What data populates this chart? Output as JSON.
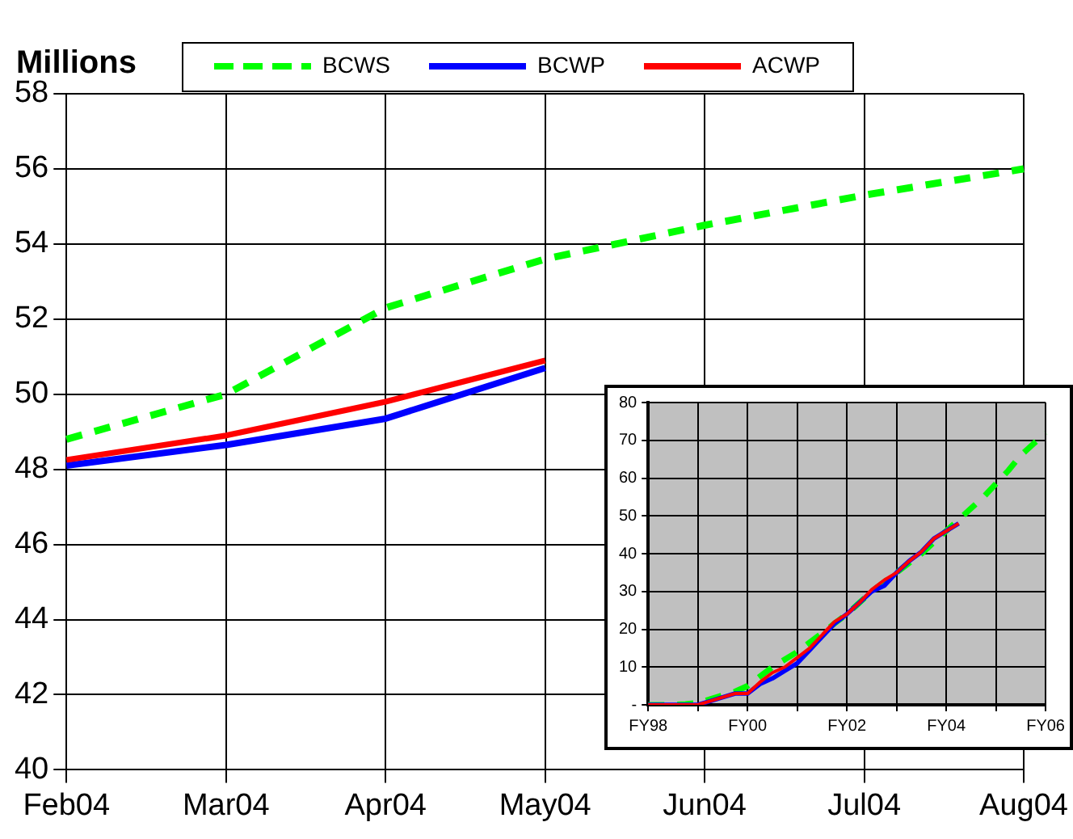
{
  "chart_data": [
    {
      "type": "line",
      "ylabel": "Millions",
      "categories": [
        "Feb04",
        "Mar04",
        "Apr04",
        "May04",
        "Jun04",
        "Jul04",
        "Aug04"
      ],
      "series": [
        {
          "name": "BCWS",
          "color": "#00ff00",
          "line_style": "dashed",
          "values": [
            48.8,
            50.0,
            52.3,
            53.6,
            54.5,
            55.3,
            56.0
          ]
        },
        {
          "name": "BCWP",
          "color": "#0000ff",
          "values": [
            48.1,
            48.65,
            49.35,
            50.7,
            null,
            null,
            null
          ]
        },
        {
          "name": "ACWP",
          "color": "#ff0000",
          "values": [
            48.25,
            48.9,
            49.8,
            50.9,
            null,
            null,
            null
          ]
        }
      ],
      "ylim": [
        40,
        58
      ],
      "yticks": [
        40,
        42,
        44,
        46,
        48,
        50,
        52,
        54,
        56,
        58
      ],
      "grid": true,
      "legend": "top",
      "marker": "none"
    },
    {
      "type": "line",
      "categories": [
        "FY98",
        null,
        null,
        null,
        null,
        null,
        null,
        null,
        "FY00",
        null,
        null,
        null,
        null,
        null,
        null,
        null,
        "FY02",
        null,
        null,
        null,
        null,
        null,
        null,
        null,
        "FY04",
        null,
        null,
        null,
        null,
        null,
        null,
        null,
        "FY06"
      ],
      "series": [
        {
          "color": "#00ff00",
          "line_style": "dashed",
          "values": [
            0,
            0,
            0,
            0.2,
            0.5,
            1.5,
            2.5,
            3.5,
            5,
            7.5,
            10,
            12,
            14,
            16.5,
            19,
            21.5,
            24,
            27,
            30,
            32.5,
            35,
            37.5,
            40,
            43,
            46,
            49,
            52,
            55,
            58.5,
            62,
            66,
            69,
            72
          ]
        },
        {
          "color": "#0000ff",
          "values": [
            0,
            0,
            0,
            0,
            0,
            1,
            2,
            3,
            3,
            5.5,
            7,
            9,
            11,
            14.5,
            18,
            21.5,
            24,
            27,
            30,
            31.5,
            35,
            38,
            40.5,
            44,
            46,
            48,
            null,
            null,
            null,
            null,
            null,
            null,
            null
          ]
        },
        {
          "color": "#ff0000",
          "values": [
            0,
            0,
            0,
            0,
            0,
            1,
            2,
            3,
            3,
            6,
            8.5,
            10,
            12.5,
            15,
            18.5,
            22,
            24,
            27,
            30.5,
            33,
            35,
            38,
            40.5,
            44,
            46,
            48,
            null,
            null,
            null,
            null,
            null,
            null,
            null
          ]
        }
      ],
      "ylim": [
        0,
        80
      ],
      "yticks": [
        {
          "value": 0,
          "label": "-"
        },
        10,
        20,
        30,
        40,
        50,
        60,
        70,
        80
      ],
      "grid": true,
      "marker": "none"
    }
  ]
}
